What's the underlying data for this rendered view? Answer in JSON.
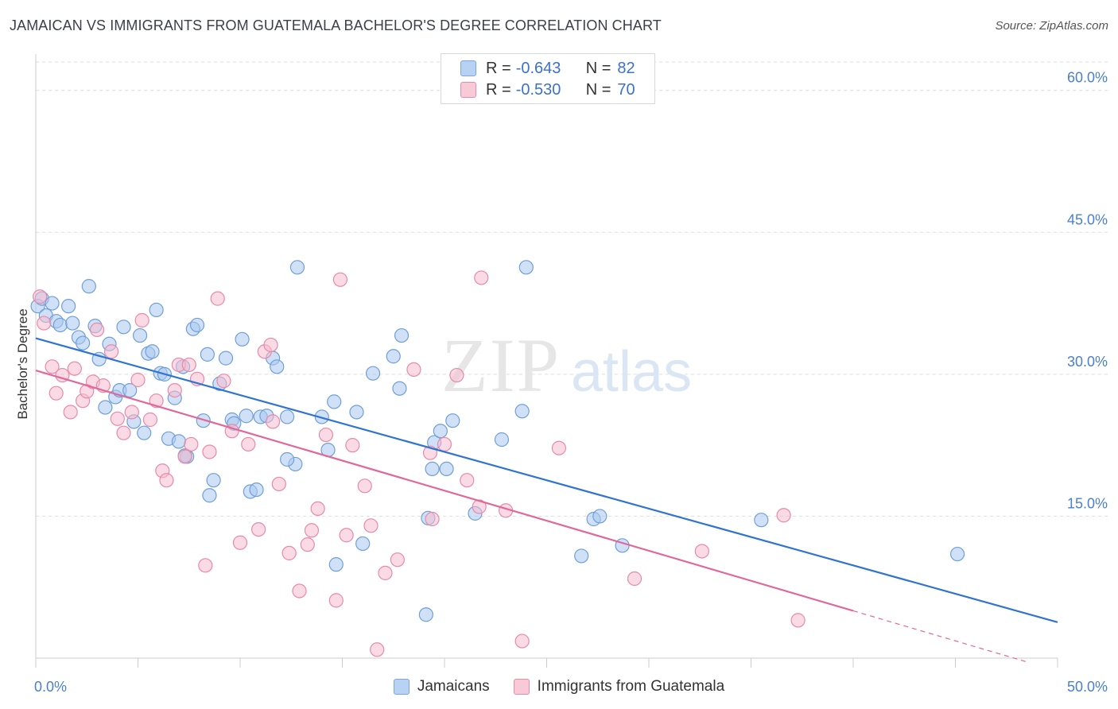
{
  "header": {
    "title": "JAMAICAN VS IMMIGRANTS FROM GUATEMALA BACHELOR'S DEGREE CORRELATION CHART",
    "source": "Source: ZipAtlas.com"
  },
  "watermark": {
    "zip": "ZIP",
    "atlas": "atlas"
  },
  "colors": {
    "blue_fill": "#a9c8f0",
    "blue_stroke": "#6f9fd8",
    "blue_line": "#2f74d0",
    "pink_fill": "#f6bccd",
    "pink_stroke": "#e88aa8",
    "pink_line": "#e0689a",
    "grid": "#dddddd",
    "tick_text": "#4a7fcf"
  },
  "legend": {
    "rows": [
      {
        "r_label": "R =",
        "r_value": "-0.643",
        "n_label": "N =",
        "n_value": "82"
      },
      {
        "r_label": "R =",
        "r_value": "-0.530",
        "n_label": "N =",
        "n_value": "70"
      }
    ]
  },
  "bottom_legend": [
    "Jamaicans",
    "Immigrants from Guatemala"
  ],
  "chart_data": {
    "type": "scatter",
    "xlabel": "",
    "ylabel": "Bachelor's Degree",
    "xlim": [
      0,
      50
    ],
    "ylim": [
      0,
      63
    ],
    "x_tick_labels": [
      "0.0%",
      "50.0%"
    ],
    "y_ticks": [
      15,
      30,
      45,
      60
    ],
    "y_tick_labels": [
      "15.0%",
      "30.0%",
      "45.0%",
      "60.0%"
    ],
    "grid": "horizontal dashed",
    "legend_position": "top-center",
    "series": [
      {
        "name": "Jamaicans",
        "trend": {
          "x0": 0,
          "y0": 33.8,
          "x1": 50,
          "y1": 3.8
        },
        "points": [
          [
            0.1,
            37.2
          ],
          [
            0.3,
            38.0
          ],
          [
            0.5,
            36.2
          ],
          [
            0.8,
            37.5
          ],
          [
            1.0,
            35.6
          ],
          [
            1.2,
            35.2
          ],
          [
            1.6,
            37.2
          ],
          [
            1.8,
            35.4
          ],
          [
            2.1,
            33.9
          ],
          [
            2.3,
            33.3
          ],
          [
            2.6,
            39.3
          ],
          [
            2.9,
            35.1
          ],
          [
            3.1,
            31.6
          ],
          [
            3.4,
            26.5
          ],
          [
            3.6,
            33.2
          ],
          [
            3.9,
            27.6
          ],
          [
            4.1,
            28.3
          ],
          [
            4.3,
            35.0
          ],
          [
            4.6,
            28.3
          ],
          [
            4.8,
            25.0
          ],
          [
            5.1,
            34.1
          ],
          [
            5.3,
            23.8
          ],
          [
            5.5,
            32.2
          ],
          [
            5.7,
            32.4
          ],
          [
            5.9,
            36.8
          ],
          [
            6.1,
            30.1
          ],
          [
            6.3,
            30.0
          ],
          [
            6.5,
            23.2
          ],
          [
            6.8,
            27.5
          ],
          [
            7.0,
            22.9
          ],
          [
            7.2,
            30.8
          ],
          [
            7.4,
            21.3
          ],
          [
            7.7,
            34.8
          ],
          [
            7.9,
            35.2
          ],
          [
            8.2,
            25.1
          ],
          [
            8.4,
            32.1
          ],
          [
            8.5,
            17.2
          ],
          [
            8.7,
            18.8
          ],
          [
            9.0,
            29.0
          ],
          [
            9.3,
            31.7
          ],
          [
            9.6,
            25.2
          ],
          [
            9.7,
            24.8
          ],
          [
            10.1,
            33.7
          ],
          [
            10.3,
            25.6
          ],
          [
            10.5,
            17.6
          ],
          [
            10.8,
            17.8
          ],
          [
            11.0,
            25.5
          ],
          [
            11.3,
            25.6
          ],
          [
            11.6,
            31.7
          ],
          [
            11.8,
            30.8
          ],
          [
            12.3,
            25.5
          ],
          [
            12.7,
            20.5
          ],
          [
            12.8,
            41.3
          ],
          [
            14.0,
            25.5
          ],
          [
            14.3,
            22.0
          ],
          [
            14.6,
            27.1
          ],
          [
            14.7,
            9.9
          ],
          [
            15.7,
            26.0
          ],
          [
            16.0,
            12.1
          ],
          [
            16.5,
            30.1
          ],
          [
            17.5,
            31.9
          ],
          [
            17.8,
            28.5
          ],
          [
            17.9,
            34.1
          ],
          [
            19.1,
            4.6
          ],
          [
            19.2,
            14.8
          ],
          [
            19.4,
            20.0
          ],
          [
            19.5,
            22.8
          ],
          [
            19.8,
            24.0
          ],
          [
            20.1,
            20.0
          ],
          [
            20.4,
            25.1
          ],
          [
            21.5,
            15.3
          ],
          [
            22.8,
            23.1
          ],
          [
            23.8,
            26.1
          ],
          [
            24.0,
            41.3
          ],
          [
            26.7,
            10.8
          ],
          [
            27.3,
            14.7
          ],
          [
            27.6,
            15.0
          ],
          [
            28.7,
            11.9
          ],
          [
            35.5,
            14.6
          ],
          [
            45.1,
            11.0
          ],
          [
            12.3,
            21.0
          ],
          [
            7.3,
            21.4
          ]
        ]
      },
      {
        "name": "Immigrants from Guatemala",
        "trend": {
          "x0": 0,
          "y0": 30.4,
          "x1": 40,
          "y1": 5.0
        },
        "trend_dashed": {
          "x0": 40,
          "y0": 5.0,
          "x1": 48.5,
          "y1": -0.4
        },
        "points": [
          [
            0.2,
            38.2
          ],
          [
            0.4,
            35.4
          ],
          [
            0.8,
            30.8
          ],
          [
            1.0,
            28.0
          ],
          [
            1.3,
            29.9
          ],
          [
            1.7,
            26.0
          ],
          [
            1.9,
            30.6
          ],
          [
            2.3,
            27.2
          ],
          [
            2.5,
            28.2
          ],
          [
            2.8,
            29.2
          ],
          [
            3.0,
            34.7
          ],
          [
            3.3,
            28.8
          ],
          [
            3.7,
            32.4
          ],
          [
            4.0,
            25.3
          ],
          [
            4.3,
            23.8
          ],
          [
            4.7,
            26.0
          ],
          [
            5.0,
            29.4
          ],
          [
            5.2,
            35.7
          ],
          [
            5.6,
            25.2
          ],
          [
            5.9,
            27.2
          ],
          [
            6.2,
            19.8
          ],
          [
            6.4,
            18.8
          ],
          [
            6.8,
            28.3
          ],
          [
            7.0,
            31.0
          ],
          [
            7.3,
            21.3
          ],
          [
            7.6,
            22.6
          ],
          [
            7.9,
            29.5
          ],
          [
            8.3,
            9.8
          ],
          [
            8.5,
            21.8
          ],
          [
            8.9,
            38.0
          ],
          [
            9.2,
            29.3
          ],
          [
            9.6,
            24.0
          ],
          [
            10.0,
            12.2
          ],
          [
            10.4,
            22.6
          ],
          [
            10.9,
            13.6
          ],
          [
            11.2,
            32.4
          ],
          [
            11.5,
            33.1
          ],
          [
            11.9,
            18.4
          ],
          [
            12.4,
            11.1
          ],
          [
            12.9,
            7.1
          ],
          [
            13.3,
            12.0
          ],
          [
            13.5,
            13.5
          ],
          [
            13.8,
            15.8
          ],
          [
            14.2,
            23.6
          ],
          [
            14.7,
            6.1
          ],
          [
            14.9,
            40.0
          ],
          [
            15.2,
            13.0
          ],
          [
            15.5,
            22.5
          ],
          [
            16.1,
            18.2
          ],
          [
            16.4,
            14.0
          ],
          [
            16.7,
            0.9
          ],
          [
            17.1,
            9.0
          ],
          [
            17.7,
            10.4
          ],
          [
            18.5,
            30.5
          ],
          [
            19.4,
            14.7
          ],
          [
            19.3,
            21.7
          ],
          [
            20.0,
            22.6
          ],
          [
            20.6,
            29.9
          ],
          [
            21.1,
            18.8
          ],
          [
            21.7,
            16.0
          ],
          [
            21.8,
            40.2
          ],
          [
            23.0,
            15.6
          ],
          [
            23.8,
            1.8
          ],
          [
            25.6,
            22.2
          ],
          [
            29.3,
            8.4
          ],
          [
            32.6,
            11.3
          ],
          [
            36.6,
            15.1
          ],
          [
            37.3,
            4.0
          ],
          [
            7.5,
            31.0
          ],
          [
            11.6,
            25.0
          ]
        ]
      }
    ]
  }
}
